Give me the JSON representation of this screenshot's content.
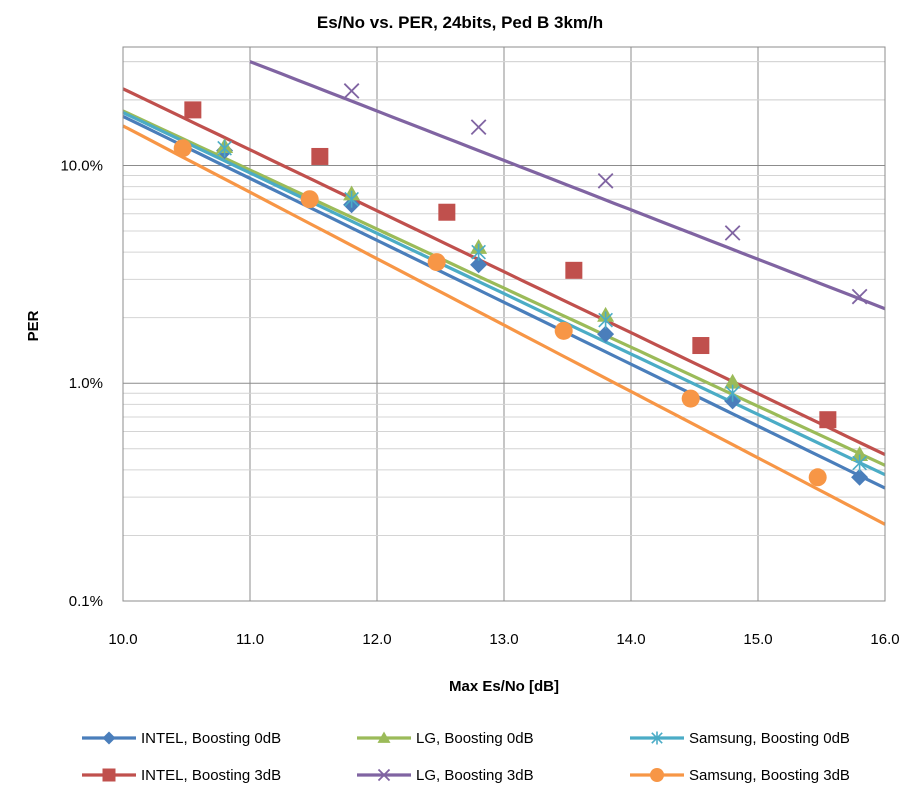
{
  "chart_data": {
    "type": "line",
    "title": "Es/No vs. PER, 24bits, Ped B 3km/h",
    "xlabel": "Max Es/No [dB]",
    "ylabel": "PER",
    "x_scale": "linear",
    "y_scale": "log",
    "xlim": [
      10.0,
      16.0
    ],
    "ylim": [
      0.001,
      0.35
    ],
    "x_ticks": [
      10.0,
      11.0,
      12.0,
      13.0,
      14.0,
      15.0,
      16.0
    ],
    "x_tick_labels": [
      "10.0",
      "11.0",
      "12.0",
      "13.0",
      "14.0",
      "15.0",
      "16.0"
    ],
    "y_ticks": [
      0.001,
      0.01,
      0.1
    ],
    "y_tick_labels": [
      "0.1%",
      "1.0%",
      "10.0%"
    ],
    "grid": true,
    "legend_position": "bottom",
    "series": [
      {
        "name": "INTEL, Boosting 0dB",
        "color": "#4A7EBB",
        "marker": "diamond",
        "line": [
          [
            10.0,
            0.168
          ],
          [
            16.0,
            0.0033
          ]
        ],
        "points": [
          [
            10.8,
            0.117
          ],
          [
            11.8,
            0.066
          ],
          [
            12.8,
            0.035
          ],
          [
            13.8,
            0.0168
          ],
          [
            14.8,
            0.0083
          ],
          [
            15.8,
            0.0037
          ]
        ]
      },
      {
        "name": "LG, Boosting 0dB",
        "color": "#9BBB59",
        "marker": "triangle",
        "line": [
          [
            10.0,
            0.178
          ],
          [
            16.0,
            0.0042
          ]
        ],
        "points": [
          [
            10.8,
            0.122
          ],
          [
            11.8,
            0.074
          ],
          [
            12.8,
            0.042
          ],
          [
            13.8,
            0.0205
          ],
          [
            14.8,
            0.0101
          ],
          [
            15.8,
            0.0047
          ]
        ]
      },
      {
        "name": "Samsung, Boosting 0dB",
        "color": "#4BACC6",
        "marker": "asterisk",
        "line": [
          [
            10.0,
            0.175
          ],
          [
            16.0,
            0.0038
          ]
        ],
        "points": [
          [
            10.8,
            0.12
          ],
          [
            11.8,
            0.07
          ],
          [
            12.8,
            0.04
          ],
          [
            13.8,
            0.0195
          ],
          [
            14.8,
            0.009
          ],
          [
            15.8,
            0.0043
          ]
        ]
      },
      {
        "name": "INTEL, Boosting 3dB",
        "color": "#C0504D",
        "marker": "square",
        "line": [
          [
            10.0,
            0.225
          ],
          [
            16.0,
            0.0047
          ]
        ],
        "points": [
          [
            10.55,
            0.18
          ],
          [
            11.55,
            0.11
          ],
          [
            12.55,
            0.061
          ],
          [
            13.55,
            0.033
          ],
          [
            14.55,
            0.0149
          ],
          [
            15.55,
            0.0068
          ]
        ]
      },
      {
        "name": "LG, Boosting 3dB",
        "color": "#8064A2",
        "marker": "x",
        "line": [
          [
            11.0,
            0.3
          ],
          [
            16.0,
            0.022
          ]
        ],
        "points": [
          [
            11.8,
            0.22
          ],
          [
            12.8,
            0.15
          ],
          [
            13.8,
            0.085
          ],
          [
            14.8,
            0.049
          ],
          [
            15.8,
            0.025
          ]
        ]
      },
      {
        "name": "Samsung, Boosting 3dB",
        "color": "#F79646",
        "marker": "circle",
        "line": [
          [
            10.0,
            0.152
          ],
          [
            16.0,
            0.00225
          ]
        ],
        "points": [
          [
            10.47,
            0.12
          ],
          [
            11.47,
            0.07
          ],
          [
            12.47,
            0.036
          ],
          [
            13.47,
            0.0174
          ],
          [
            14.47,
            0.0085
          ],
          [
            15.47,
            0.0037
          ]
        ]
      }
    ]
  }
}
